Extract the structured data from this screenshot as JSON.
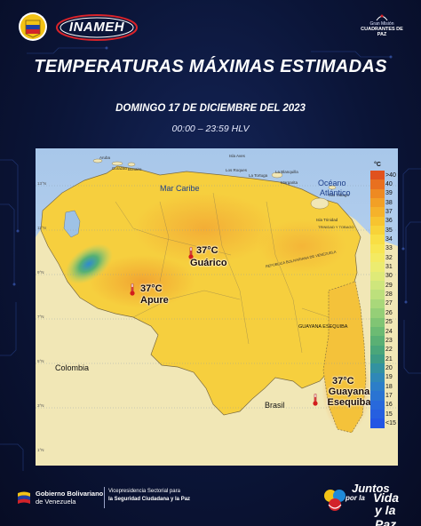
{
  "header": {
    "inameh_logo_text": "INAMEH",
    "cuadrantes_logo_top": "Gran Misión",
    "cuadrantes_logo_main": "CUADRANTES DE PAZ",
    "title": "TEMPERATURAS MÁXIMAS ESTIMADAS",
    "date": "DOMINGO 17 DE DICIEMBRE DEL 2023",
    "hours": "00:00 – 23:59 HLV"
  },
  "map": {
    "regions": {
      "caribbean": "Mar Caribe",
      "atlantic_line1": "Océano",
      "atlantic_line2": "Atlántico",
      "colombia": "Colombia",
      "brasil": "Brasil",
      "guayana": "GUAYANA ESEQUIBA",
      "trinidad": "TRINIDAD Y TOBAGO",
      "rep_bolivariana": "REPÚBLICA BOLIVARIANA DE VENEZUELA"
    },
    "small_places": [
      "Aruba",
      "Curazao",
      "Bonaire",
      "Isla Aves",
      "Los Roques",
      "La Tortuga",
      "La Blanquilla",
      "Margarita",
      "Isla Trinidad",
      "Isla Tobago"
    ],
    "latitude_labels": [
      "13°N",
      "11°N",
      "9°N",
      "7°N",
      "5°N",
      "3°N",
      "1°N"
    ],
    "markers": [
      {
        "temp": "37°C",
        "place": "Guárico"
      },
      {
        "temp": "37°C",
        "place": "Apure"
      },
      {
        "temp": "37°C",
        "place": "Guayana Esequiba"
      }
    ],
    "legend": {
      "unit": "°C",
      "labels": [
        ">40",
        "40",
        "39",
        "38",
        "37",
        "36",
        "35",
        "34",
        "33",
        "32",
        "31",
        "30",
        "29",
        "28",
        "27",
        "26",
        "25",
        "24",
        "23",
        "22",
        "21",
        "20",
        "19",
        "18",
        "17",
        "16",
        "15",
        "<15"
      ],
      "colors": [
        "#e0521e",
        "#e8701f",
        "#ee8a22",
        "#f2a026",
        "#f5b22b",
        "#f7c430",
        "#f8d339",
        "#f9df45",
        "#f8e652",
        "#f4ea62",
        "#ecec70",
        "#dfea78",
        "#cfe67c",
        "#bde07c",
        "#a9d87a",
        "#95cf77",
        "#80c574",
        "#6cbb73",
        "#5ab074",
        "#4aa67a",
        "#3d9c85",
        "#3392a0",
        "#2f88b7",
        "#2c7ec8",
        "#2a74d2",
        "#2869db",
        "#265fe0",
        "#2356e4"
      ]
    }
  },
  "footer": {
    "gov_bold": "Gobierno Bolivariano",
    "gov_rest": "de Venezuela",
    "vice_line1": "Vicepresidencia Sectorial para",
    "vice_line2": "la Seguridad Ciudadana y la Paz",
    "juntos_1": "Juntos",
    "juntos_2": "por la",
    "juntos_3": "Vida",
    "juntos_4": "y la Paz"
  }
}
